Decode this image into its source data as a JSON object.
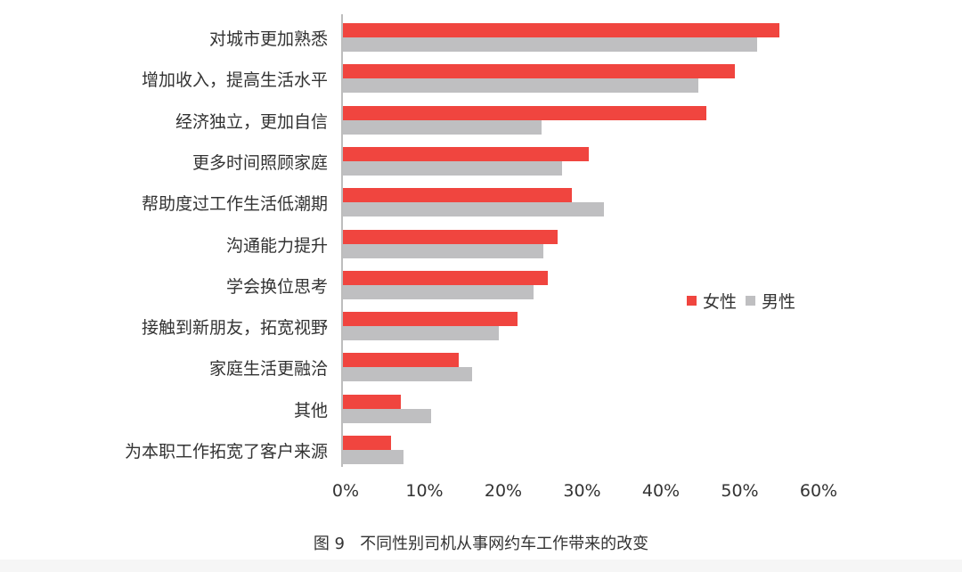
{
  "chart_data": {
    "type": "bar",
    "orientation": "horizontal",
    "title": "",
    "caption": {
      "figure_no": "图 9",
      "text": "不同性别司机从事网约车工作带来的改变"
    },
    "categories": [
      "对城市更加熟悉",
      "增加收入，提高生活水平",
      "经济独立，更加自信",
      "更多时间照顾家庭",
      "帮助度过工作生活低潮期",
      "沟通能力提升",
      "学会换位思考",
      "接触到新朋友，拓宽视野",
      "家庭生活更融洽",
      "其他",
      "为本职工作拓宽了客户来源"
    ],
    "series": [
      {
        "name": "女性",
        "color": "#f0453f",
        "values": [
          55.5,
          49.8,
          46.2,
          31.3,
          29.2,
          27.3,
          26.1,
          22.3,
          14.8,
          7.5,
          6.2
        ]
      },
      {
        "name": "男性",
        "color": "#bfbfc1",
        "values": [
          52.6,
          45.2,
          25.3,
          27.9,
          33.2,
          25.5,
          24.3,
          19.9,
          16.5,
          11.3,
          7.8
        ]
      }
    ],
    "xlabel": "",
    "ylabel": "",
    "xlim": [
      0,
      60
    ],
    "xticks": [
      "0%",
      "10%",
      "20%",
      "30%",
      "40%",
      "50%",
      "60%"
    ],
    "grid": false,
    "legend_position": "right"
  },
  "legend": {
    "items": [
      {
        "label": "女性",
        "color": "#f0453f"
      },
      {
        "label": "男性",
        "color": "#bfbfc1"
      }
    ]
  }
}
